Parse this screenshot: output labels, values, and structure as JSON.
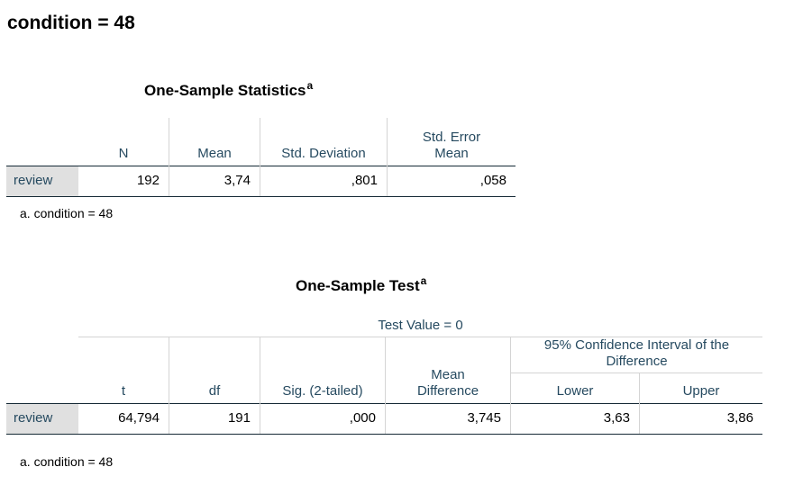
{
  "heading": "condition = 48",
  "stats_table": {
    "title": "One-Sample Statistics",
    "title_sup": "a",
    "columns": [
      "N",
      "Mean",
      "Std. Deviation",
      "Std. Error Mean"
    ],
    "col_std_error_line1": "Std. Error",
    "col_std_error_line2": "Mean",
    "row": {
      "label": "review",
      "n": "192",
      "mean": "3,74",
      "std_deviation": ",801",
      "std_error_mean": ",058"
    },
    "footnote": "a. condition = 48"
  },
  "test_table": {
    "title": "One-Sample Test",
    "title_sup": "a",
    "test_value_label": "Test Value = 0",
    "ci_label_line1": "95% Confidence Interval of the",
    "ci_label_line2": "Difference",
    "columns": {
      "t": "t",
      "df": "df",
      "sig": "Sig. (2-tailed)",
      "mean_diff_line1": "Mean",
      "mean_diff_line2": "Difference",
      "lower": "Lower",
      "upper": "Upper"
    },
    "row": {
      "label": "review",
      "t": "64,794",
      "df": "191",
      "sig": ",000",
      "mean_difference": "3,745",
      "lower": "3,63",
      "upper": "3,86"
    },
    "footnote": "a. condition = 48"
  }
}
